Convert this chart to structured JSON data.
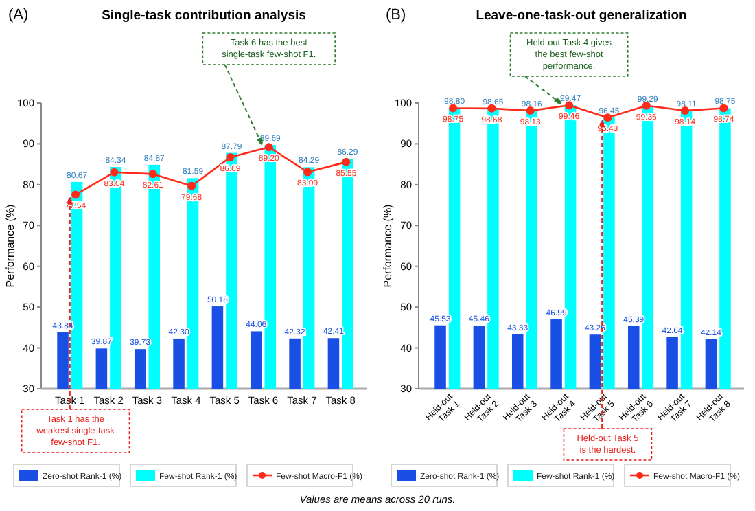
{
  "chart_data": [
    {
      "type": "bar",
      "title": "Single-task contribution analysis",
      "ylabel": "Performance (%)",
      "categories": [
        "Task 1",
        "Task 2",
        "Task 3",
        "Task 4",
        "Task 5",
        "Task 6",
        "Task 7",
        "Task 8"
      ],
      "ylim": [
        30,
        100
      ],
      "yticks": [
        30,
        40,
        50,
        60,
        70,
        80,
        90,
        100
      ],
      "legend": "bottom",
      "series": [
        {
          "name": "Zero-shot Rank-1 (%)",
          "color": "#1a4fe6",
          "values": [
            43.84,
            39.87,
            39.73,
            42.3,
            50.18,
            44.06,
            42.32,
            42.41
          ],
          "value_labels": [
            "43.84",
            "39.87",
            "39.73",
            "42.30",
            "50.18",
            "44.06",
            "42.32",
            "42.41"
          ]
        },
        {
          "name": "Few-shot Rank-1 (%)",
          "color": "#00ffff",
          "values": [
            80.67,
            84.34,
            84.87,
            81.59,
            87.79,
            89.69,
            84.29,
            86.29
          ],
          "value_labels": [
            "80.67",
            "84.34",
            "84.87",
            "81.59",
            "87.79",
            "89.69",
            "84.29",
            "86.29"
          ]
        },
        {
          "name": "Few-shot Macro-F1 (%)",
          "type": "line",
          "color": "#ff2a1a",
          "marker": "circle",
          "values": [
            77.54,
            83.04,
            82.61,
            79.68,
            86.69,
            89.2,
            83.09,
            85.55
          ],
          "value_labels": [
            "77.54",
            "83.04",
            "82.61",
            "79.68",
            "86.69",
            "89.20",
            "83.09",
            "85.55"
          ]
        }
      ],
      "annotations": [
        "(A)",
        {
          "text": "Task 6 has the best\nsingle-task few-shot F1.",
          "x": "Task 6",
          "y": 89.2
        },
        {
          "text": "Task 1 has the\nweakest single-task\nfew-shot F1.",
          "x": "Task 1",
          "y": 77.54
        }
      ]
    },
    {
      "type": "bar",
      "title": "Leave-one-task-out generalization",
      "ylabel": "Performance (%)",
      "categories": [
        "Held-out Task 1",
        "Held-out Task 2",
        "Held-out Task 3",
        "Held-out Task 4",
        "Held-out Task 5",
        "Held-out Task 6",
        "Held-out Task 7",
        "Held-out Task 8"
      ],
      "ylim": [
        30,
        100
      ],
      "yticks": [
        30,
        40,
        50,
        60,
        70,
        80,
        90,
        100
      ],
      "legend": "bottom",
      "series": [
        {
          "name": "Zero-shot Rank-1 (%)",
          "color": "#1a4fe6",
          "values": [
            45.53,
            45.46,
            43.33,
            46.99,
            43.26,
            45.39,
            42.64,
            42.14
          ],
          "value_labels": [
            "45.53",
            "45.46",
            "43.33",
            "46.99",
            "43.26",
            "45.39",
            "42.64",
            "42.14"
          ]
        },
        {
          "name": "Few-shot Rank-1 (%)",
          "color": "#00ffff",
          "values": [
            98.8,
            98.65,
            98.16,
            99.47,
            96.45,
            99.29,
            98.11,
            98.75
          ],
          "value_labels": [
            "98.80",
            "98.65",
            "98.16",
            "99.47",
            "96.45",
            "99.29",
            "98.11",
            "98.75"
          ]
        },
        {
          "name": "Few-shot Macro-F1 (%)",
          "type": "line",
          "color": "#ff2a1a",
          "marker": "circle",
          "values": [
            98.75,
            98.68,
            98.13,
            99.46,
            96.43,
            99.36,
            98.14,
            98.74
          ],
          "value_labels": [
            "98.75",
            "98.68",
            "98.13",
            "99.46",
            "96.43",
            "99.36",
            "98.14",
            "98.74"
          ]
        }
      ],
      "annotations": [
        "(B)",
        {
          "text": "Held-out Task 4 gives\nthe best few-shot\nperformance.",
          "x": "Held-out Task 4",
          "y": 99.46
        },
        {
          "text": "Held-out Task 5\nis the hardest.",
          "x": "Held-out Task 5",
          "y": 96.43
        },
        "Values are means across 20 runs."
      ]
    }
  ]
}
